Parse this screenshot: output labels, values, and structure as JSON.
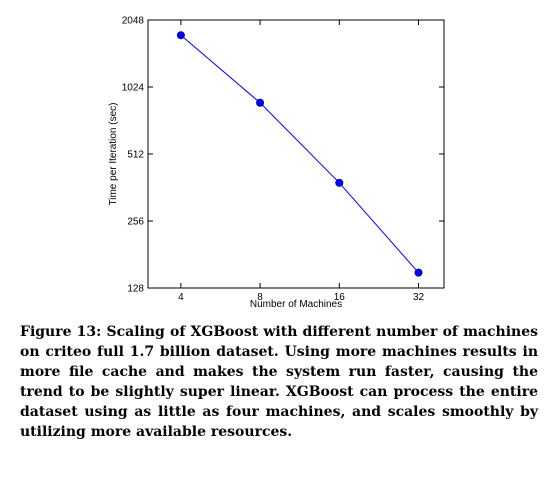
{
  "chart_data": {
    "type": "line",
    "x": [
      4,
      8,
      16,
      32
    ],
    "values": [
      1750,
      870,
      380,
      150
    ],
    "x_scale": "log2",
    "y_scale": "log2",
    "xlim": [
      3,
      40
    ],
    "ylim": [
      128,
      2048
    ],
    "x_ticks": [
      "4",
      "8",
      "16",
      "32"
    ],
    "y_ticks": [
      "128",
      "256",
      "512",
      "1024",
      "2048"
    ],
    "xlabel": "Number of Machines",
    "ylabel": "Time per Iteration (sec)",
    "grid": false,
    "marker": "circle",
    "line_color": "#0000ff",
    "marker_color": "#0000ff",
    "marker_edge_color": "#00008b"
  },
  "caption": {
    "text": "Figure 13: Scaling of XGBoost with different number of machines on criteo full 1.7 billion dataset. Using more machines results in more file cache and makes the system run faster, causing the trend to be slightly super linear. XGBoost can process the entire dataset using as little as four machines, and scales smoothly by utilizing more available resources."
  }
}
